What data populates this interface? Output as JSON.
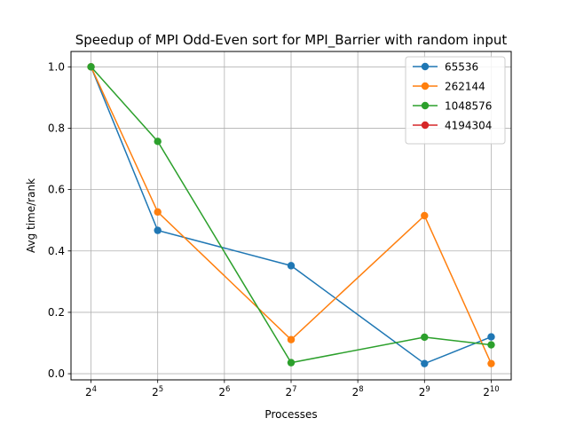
{
  "chart_data": {
    "type": "line",
    "title": "Speedup of MPI Odd-Even sort for MPI_Barrier with random input",
    "xlabel": "Processes",
    "ylabel": "Avg time/rank",
    "x_scale": "log2",
    "x": [
      16,
      32,
      128,
      512,
      1024
    ],
    "xticks": [
      16,
      32,
      64,
      128,
      256,
      512,
      1024
    ],
    "xtick_labels": [
      {
        "base": "2",
        "exp": "4"
      },
      {
        "base": "2",
        "exp": "5"
      },
      {
        "base": "2",
        "exp": "6"
      },
      {
        "base": "2",
        "exp": "7"
      },
      {
        "base": "2",
        "exp": "8"
      },
      {
        "base": "2",
        "exp": "9"
      },
      {
        "base": "2",
        "exp": "10"
      }
    ],
    "yticks": [
      "0.0",
      "0.2",
      "0.4",
      "0.6",
      "0.8",
      "1.0"
    ],
    "ylim": [
      -0.02,
      1.05
    ],
    "grid": true,
    "legend_position": "top-right",
    "series": [
      {
        "name": "65536",
        "color": "#1f77b4",
        "values": [
          1.0,
          0.467,
          0.352,
          0.033,
          0.12
        ]
      },
      {
        "name": "262144",
        "color": "#ff7f0e",
        "values": [
          1.0,
          0.527,
          0.111,
          0.515,
          0.033
        ]
      },
      {
        "name": "1048576",
        "color": "#2ca02c",
        "values": [
          1.0,
          0.757,
          0.036,
          0.119,
          0.094
        ]
      },
      {
        "name": "4194304",
        "color": "#d62728",
        "values": [
          null,
          null,
          null,
          null,
          null
        ]
      }
    ]
  }
}
